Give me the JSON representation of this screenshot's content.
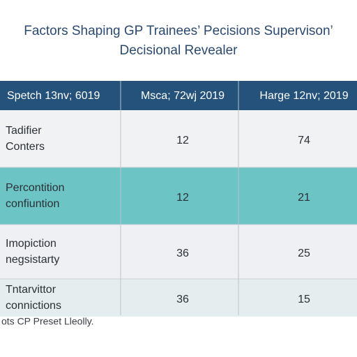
{
  "header": {
    "title": [
      "Factors Shaping GP Trainees’ Pecisions Supervison’",
      "Decisional Revealer"
    ]
  },
  "table": {
    "columns": [
      "Spetch 13nv; 6019",
      "Msca; 72wj 2019",
      "Harge 12nv; 2019"
    ],
    "rows": [
      [
        [
          "Tadifier",
          "Conters"
        ],
        12,
        74
      ],
      [
        [
          "Percontition",
          "confiuntion"
        ],
        12,
        21
      ],
      [
        [
          "Imopiction",
          "negsistarty"
        ],
        36,
        25
      ],
      [
        [
          "Tntarvittor",
          "connictions"
        ],
        36,
        15
      ]
    ]
  },
  "footnote": "ots CP Preset Lleolly."
}
